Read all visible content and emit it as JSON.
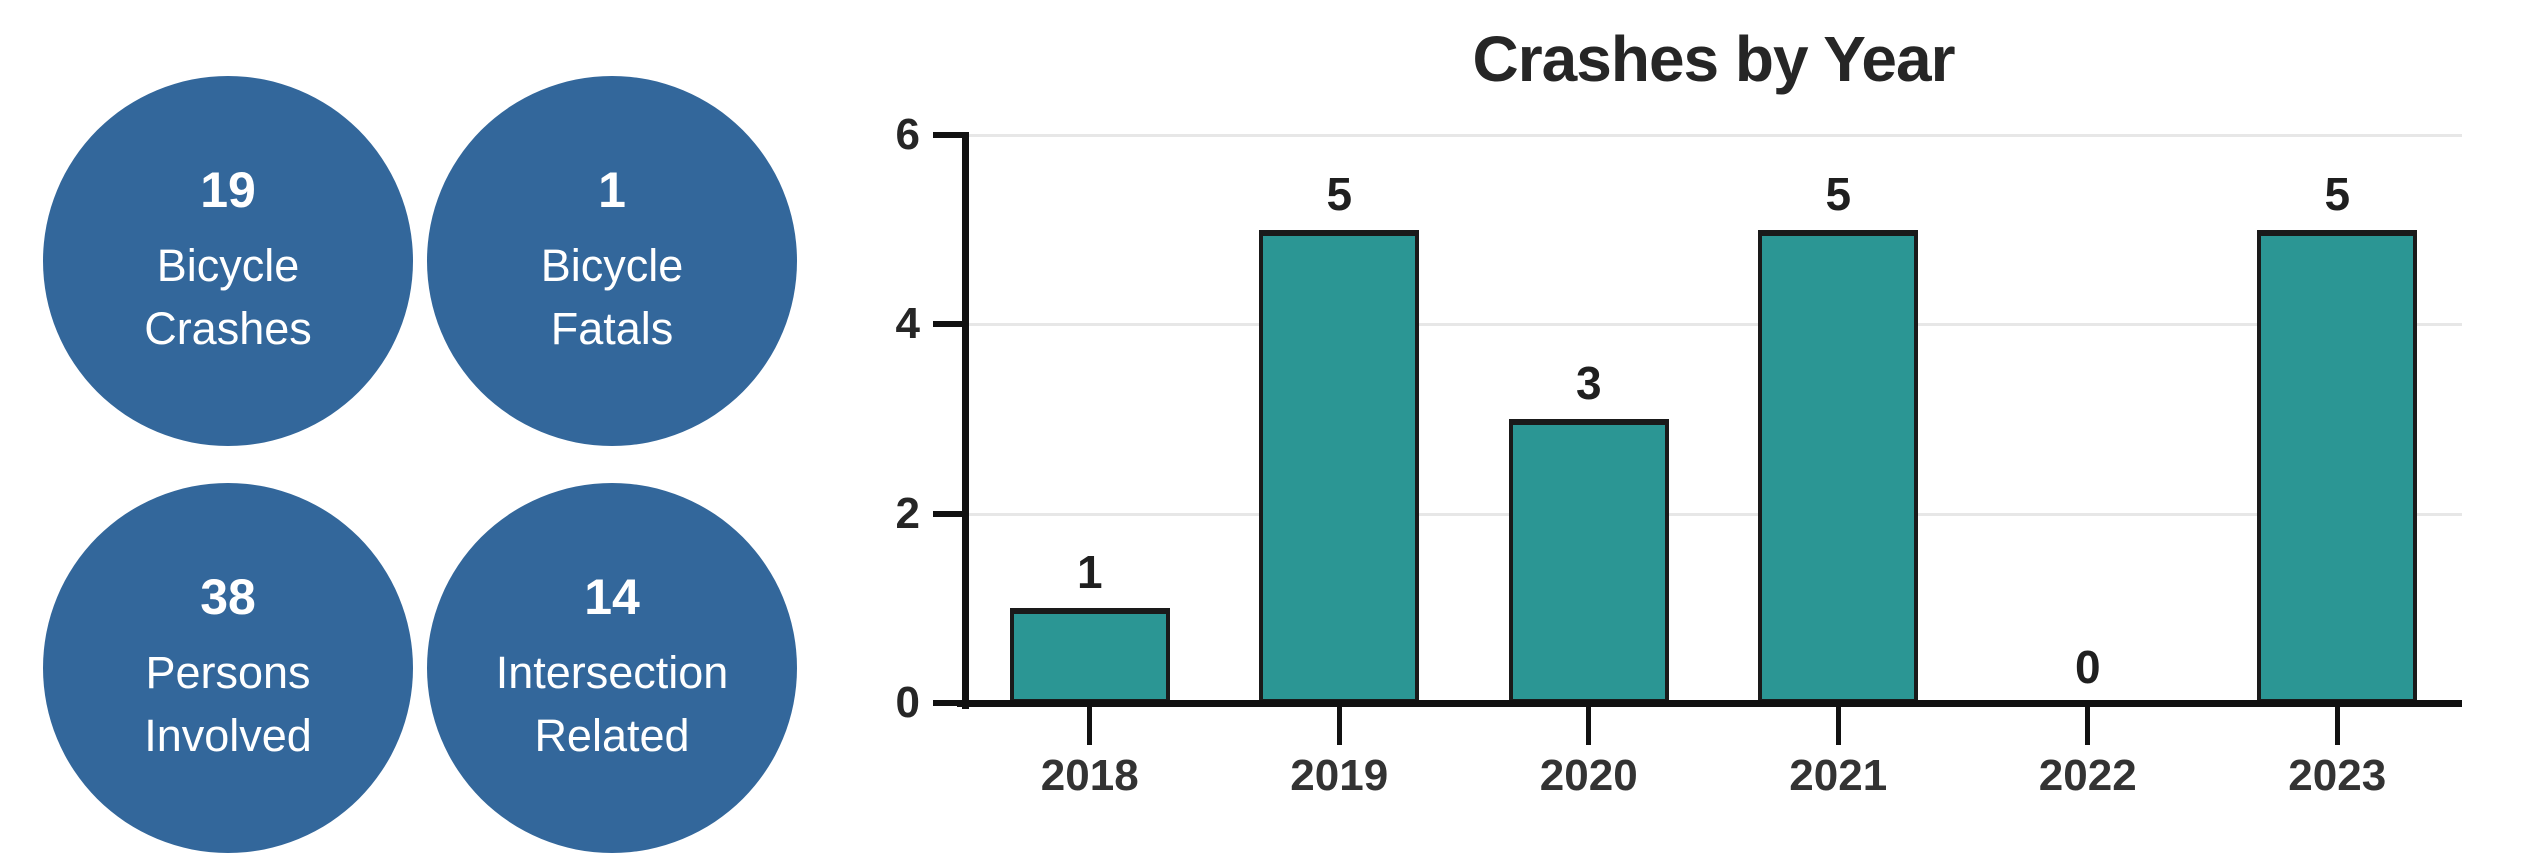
{
  "stats": [
    {
      "value": "19",
      "label": "Bicycle\nCrashes"
    },
    {
      "value": "1",
      "label": "Bicycle\nFatals"
    },
    {
      "value": "38",
      "label": "Persons\nInvolved"
    },
    {
      "value": "14",
      "label": "Intersection\nRelated"
    }
  ],
  "colors": {
    "circle_fill": "#33679B",
    "circle_text": "#FFFFFF",
    "bar_fill": "#2B9694",
    "bar_border": "#1A1A1A",
    "axis": "#111111",
    "gridline": "#E7E7E7",
    "text": "#262626"
  },
  "chart_data": {
    "type": "bar",
    "title": "Crashes by Year",
    "categories": [
      "2018",
      "2019",
      "2020",
      "2021",
      "2022",
      "2023"
    ],
    "values": [
      1,
      5,
      3,
      5,
      0,
      5
    ],
    "xlabel": "",
    "ylabel": "",
    "ylim": [
      0,
      6
    ],
    "yticks": [
      0,
      2,
      4,
      6
    ],
    "gridline_values": [
      2,
      4,
      6
    ],
    "grid": true,
    "legend": false,
    "bar_color": "#2B9694",
    "value_labels": [
      1,
      5,
      3,
      5,
      0,
      5
    ]
  }
}
